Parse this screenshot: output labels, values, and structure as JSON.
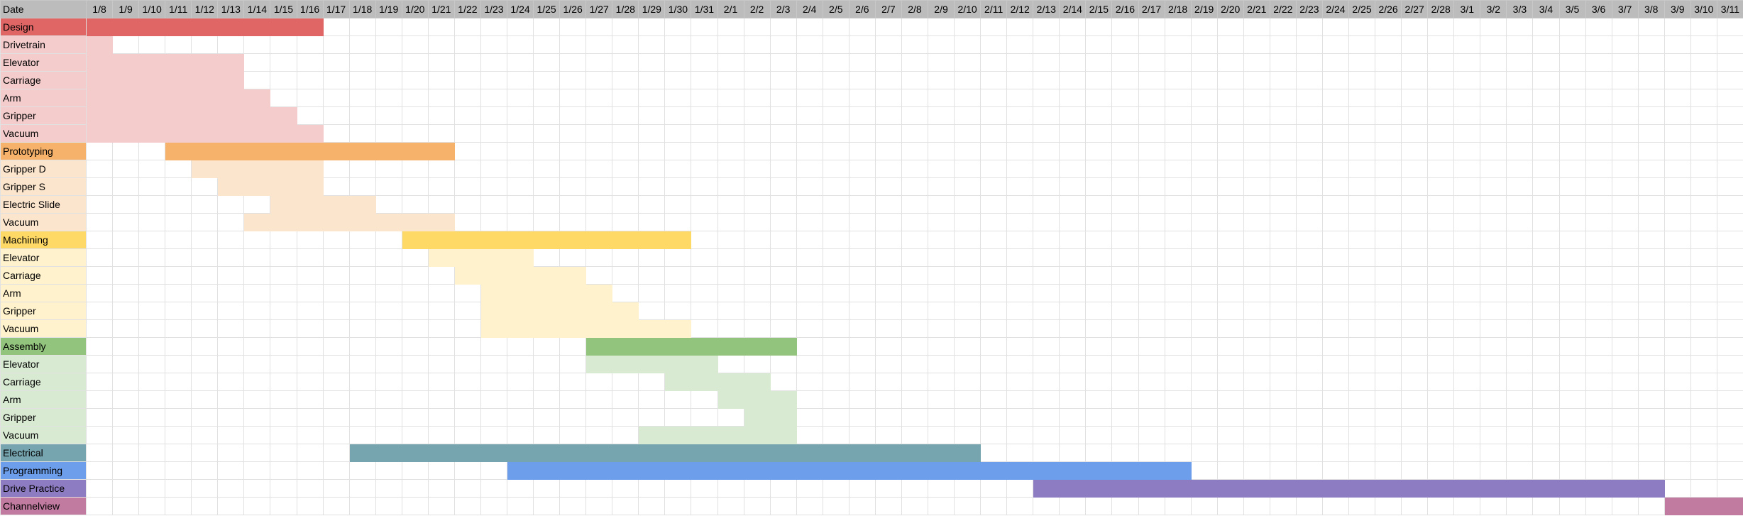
{
  "sheet": {
    "header_label": "Date",
    "dates": [
      "1/8",
      "1/9",
      "1/10",
      "1/11",
      "1/12",
      "1/13",
      "1/14",
      "1/15",
      "1/16",
      "1/17",
      "1/18",
      "1/19",
      "1/20",
      "1/21",
      "1/22",
      "1/23",
      "1/24",
      "1/25",
      "1/26",
      "1/27",
      "1/28",
      "1/29",
      "1/30",
      "1/31",
      "2/1",
      "2/2",
      "2/3",
      "2/4",
      "2/5",
      "2/6",
      "2/7",
      "2/8",
      "2/9",
      "2/10",
      "2/11",
      "2/12",
      "2/13",
      "2/14",
      "2/15",
      "2/16",
      "2/17",
      "2/18",
      "2/19",
      "2/20",
      "2/21",
      "2/22",
      "2/23",
      "2/24",
      "2/25",
      "2/26",
      "2/27",
      "2/28",
      "3/1",
      "3/2",
      "3/3",
      "3/4",
      "3/5",
      "3/6",
      "3/7",
      "3/8",
      "3/9",
      "3/10",
      "3/11"
    ],
    "tasks": [
      {
        "label": "Design",
        "label_color": "#e06666",
        "bar_color": "#e06666",
        "start": 0,
        "end": 8
      },
      {
        "label": "Drivetrain",
        "label_color": "#f4cccc",
        "bar_color": "#f4cccc",
        "start": 0,
        "end": 0
      },
      {
        "label": "Elevator",
        "label_color": "#f4cccc",
        "bar_color": "#f4cccc",
        "start": 0,
        "end": 5
      },
      {
        "label": "Carriage",
        "label_color": "#f4cccc",
        "bar_color": "#f4cccc",
        "start": 0,
        "end": 5
      },
      {
        "label": "Arm",
        "label_color": "#f4cccc",
        "bar_color": "#f4cccc",
        "start": 0,
        "end": 6
      },
      {
        "label": "Gripper",
        "label_color": "#f4cccc",
        "bar_color": "#f4cccc",
        "start": 0,
        "end": 7
      },
      {
        "label": "Vacuum",
        "label_color": "#f4cccc",
        "bar_color": "#f4cccc",
        "start": 0,
        "end": 8
      },
      {
        "label": "Prototyping",
        "label_color": "#f6b26b",
        "bar_color": "#f6b26b",
        "start": 3,
        "end": 13
      },
      {
        "label": "Gripper D",
        "label_color": "#fce5cd",
        "bar_color": "#fce5cd",
        "start": 4,
        "end": 8
      },
      {
        "label": "Gripper S",
        "label_color": "#fce5cd",
        "bar_color": "#fce5cd",
        "start": 5,
        "end": 8
      },
      {
        "label": "Electric Slide",
        "label_color": "#fce5cd",
        "bar_color": "#fce5cd",
        "start": 7,
        "end": 10
      },
      {
        "label": "Vacuum",
        "label_color": "#fce5cd",
        "bar_color": "#fce5cd",
        "start": 6,
        "end": 13
      },
      {
        "label": "Machining",
        "label_color": "#ffd966",
        "bar_color": "#ffd966",
        "start": 12,
        "end": 22
      },
      {
        "label": "Elevator",
        "label_color": "#fff2cc",
        "bar_color": "#fff2cc",
        "start": 13,
        "end": 16
      },
      {
        "label": "Carriage",
        "label_color": "#fff2cc",
        "bar_color": "#fff2cc",
        "start": 14,
        "end": 18
      },
      {
        "label": "Arm",
        "label_color": "#fff2cc",
        "bar_color": "#fff2cc",
        "start": 15,
        "end": 19
      },
      {
        "label": "Gripper",
        "label_color": "#fff2cc",
        "bar_color": "#fff2cc",
        "start": 15,
        "end": 20
      },
      {
        "label": "Vacuum",
        "label_color": "#fff2cc",
        "bar_color": "#fff2cc",
        "start": 15,
        "end": 22
      },
      {
        "label": "Assembly",
        "label_color": "#93c47d",
        "bar_color": "#93c47d",
        "start": 19,
        "end": 26
      },
      {
        "label": "Elevator",
        "label_color": "#d9ead3",
        "bar_color": "#d9ead3",
        "start": 19,
        "end": 23
      },
      {
        "label": "Carriage",
        "label_color": "#d9ead3",
        "bar_color": "#d9ead3",
        "start": 22,
        "end": 25
      },
      {
        "label": "Arm",
        "label_color": "#d9ead3",
        "bar_color": "#d9ead3",
        "start": 24,
        "end": 26
      },
      {
        "label": "Gripper",
        "label_color": "#d9ead3",
        "bar_color": "#d9ead3",
        "start": 25,
        "end": 26
      },
      {
        "label": "Vacuum",
        "label_color": "#d9ead3",
        "bar_color": "#d9ead3",
        "start": 21,
        "end": 26
      },
      {
        "label": "Electrical",
        "label_color": "#76a5af",
        "bar_color": "#76a5af",
        "start": 10,
        "end": 33
      },
      {
        "label": "Programming",
        "label_color": "#6d9eeb",
        "bar_color": "#6d9eeb",
        "start": 16,
        "end": 41
      },
      {
        "label": "Drive Practice",
        "label_color": "#8e7cc3",
        "bar_color": "#8e7cc3",
        "start": 36,
        "end": 59
      },
      {
        "label": "Channelview",
        "label_color": "#c27ba0",
        "bar_color": "#c27ba0",
        "start": 60,
        "end": 62
      }
    ]
  }
}
